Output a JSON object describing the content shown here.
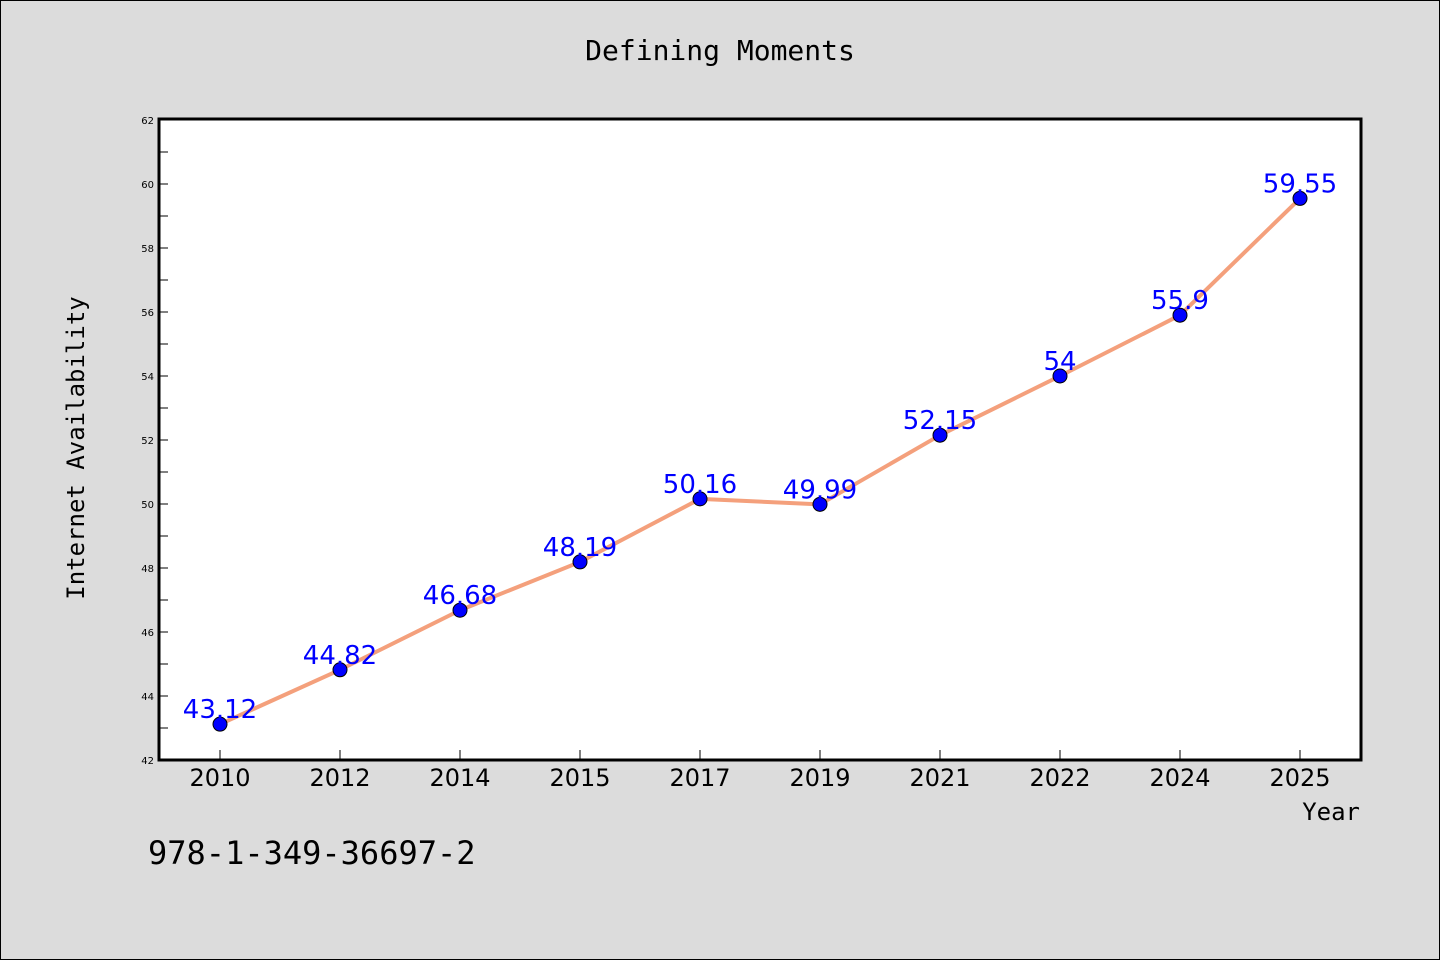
{
  "title": "Defining Moments",
  "footnote": "978-1-349-36697-2",
  "colors": {
    "background": "#dcdcdc",
    "plot_background": "#ffffff",
    "line": "#f4a07c",
    "marker": "#0000ff",
    "data_label": "#0000ff"
  },
  "chart_data": {
    "type": "line",
    "title": "Defining Moments",
    "xlabel": "Year",
    "ylabel": "Internet Availability",
    "categories": [
      "2010",
      "2012",
      "2014",
      "2015",
      "2017",
      "2019",
      "2021",
      "2022",
      "2024",
      "2025"
    ],
    "series": [
      {
        "values": [
          43.12,
          44.82,
          46.68,
          48.19,
          50.16,
          49.99,
          52.15,
          54,
          55.9,
          59.55
        ]
      }
    ],
    "data_labels": [
      "43.12",
      "44.82",
      "46.68",
      "48.19",
      "50.16",
      "49.99",
      "52.15",
      "54",
      "55.9",
      "59.55"
    ],
    "ylim": [
      42,
      62
    ],
    "y_ticks": [
      42,
      44,
      46,
      48,
      50,
      52,
      54,
      56,
      58,
      60,
      62
    ],
    "grid": false,
    "legend": "none"
  }
}
